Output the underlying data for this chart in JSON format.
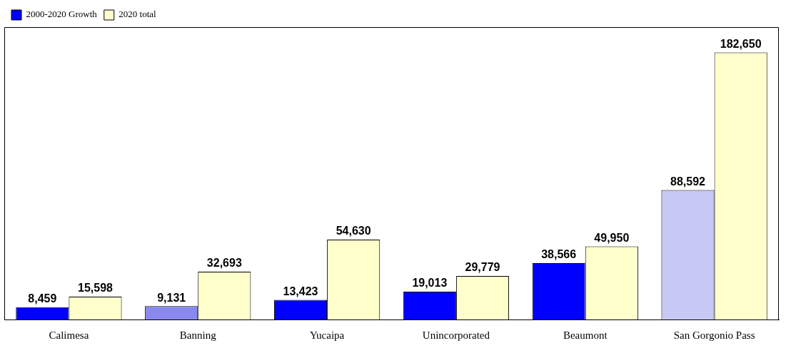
{
  "chart_data": {
    "type": "bar",
    "categories": [
      "Calimesa",
      "Banning",
      "Yucaipa",
      "Unincorporated",
      "Beaumont",
      "San Gorgonio Pass"
    ],
    "series": [
      {
        "name": "2000-2020 Growth",
        "color": "#0000ff",
        "colors": [
          "#0000ff",
          "#8888ee",
          "#0000ff",
          "#0000ff",
          "#0000ff",
          "#c8c8f4"
        ],
        "values": [
          8459,
          9131,
          13423,
          19013,
          38566,
          88592
        ],
        "value_labels": [
          "8,459",
          "9,131",
          "13,423",
          "19,013",
          "38,566",
          "88,592"
        ]
      },
      {
        "name": "2020 total",
        "color": "#ffffcc",
        "values": [
          15598,
          32693,
          54630,
          29779,
          49950,
          182650
        ],
        "value_labels": [
          "15,598",
          "32,693",
          "54,630",
          "29,779",
          "49,950",
          "182,650"
        ]
      }
    ],
    "legend": "top left",
    "grid": false
  }
}
